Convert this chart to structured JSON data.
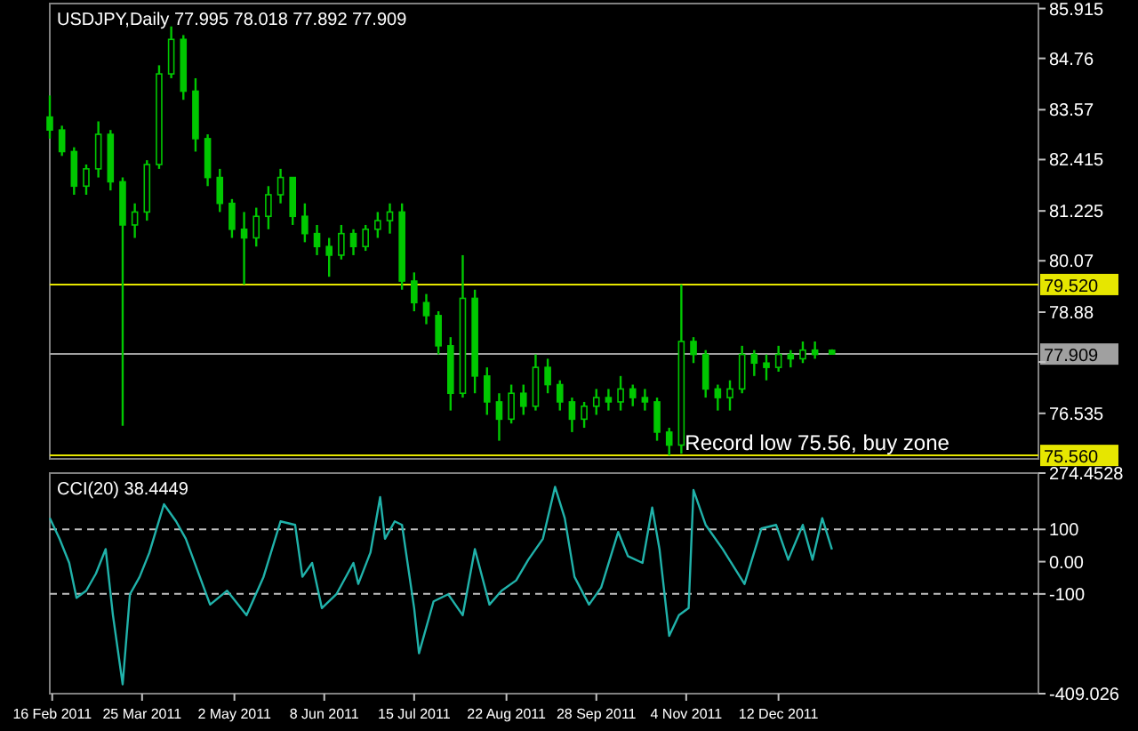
{
  "chart_data": [
    {
      "type": "candlestick",
      "title": "USDJPY,Daily  77.995 78.018 77.892 77.909",
      "color": "#00c800",
      "tick_labels": "y",
      "x": [
        "2011-02-15",
        "2011-02-20",
        "2011-02-25",
        "2011-03-02",
        "2011-03-07",
        "2011-03-12",
        "2011-03-17",
        "2011-03-22",
        "2011-03-27",
        "2011-04-01",
        "2011-04-06",
        "2011-04-11",
        "2011-04-16",
        "2011-04-21",
        "2011-04-26",
        "2011-05-01",
        "2011-05-06",
        "2011-05-11",
        "2011-05-16",
        "2011-05-21",
        "2011-05-26",
        "2011-05-31",
        "2011-06-05",
        "2011-06-10",
        "2011-06-15",
        "2011-06-20",
        "2011-06-25",
        "2011-06-30",
        "2011-07-05",
        "2011-07-10",
        "2011-07-15",
        "2011-07-20",
        "2011-07-25",
        "2011-07-30",
        "2011-08-04",
        "2011-08-09",
        "2011-08-14",
        "2011-08-19",
        "2011-08-24",
        "2011-08-29",
        "2011-09-03",
        "2011-09-08",
        "2011-09-13",
        "2011-09-18",
        "2011-09-23",
        "2011-09-28",
        "2011-10-03",
        "2011-10-08",
        "2011-10-13",
        "2011-10-18",
        "2011-10-23",
        "2011-10-28",
        "2011-11-02",
        "2011-11-07",
        "2011-11-12",
        "2011-11-17",
        "2011-11-22",
        "2011-11-27",
        "2011-12-02",
        "2011-12-07",
        "2011-12-12",
        "2011-12-17",
        "2011-12-22",
        "2011-12-27",
        "2012-01-03"
      ],
      "ohlc": [
        [
          83.4,
          83.9,
          82.9,
          83.1
        ],
        [
          83.1,
          83.2,
          82.5,
          82.6
        ],
        [
          82.6,
          82.7,
          81.6,
          81.8
        ],
        [
          81.8,
          82.3,
          81.6,
          82.2
        ],
        [
          82.2,
          83.3,
          82.0,
          83.0
        ],
        [
          83.0,
          83.1,
          81.7,
          81.9
        ],
        [
          81.9,
          82.0,
          76.25,
          80.9
        ],
        [
          80.9,
          81.4,
          80.6,
          81.2
        ],
        [
          81.2,
          82.4,
          81.0,
          82.3
        ],
        [
          82.3,
          84.6,
          82.2,
          84.4
        ],
        [
          84.4,
          85.5,
          84.3,
          85.2
        ],
        [
          85.2,
          85.3,
          83.8,
          84.0
        ],
        [
          84.0,
          84.3,
          82.6,
          82.9
        ],
        [
          82.9,
          83.0,
          81.8,
          82.0
        ],
        [
          82.0,
          82.2,
          81.2,
          81.4
        ],
        [
          81.4,
          81.5,
          80.6,
          80.8
        ],
        [
          80.8,
          81.2,
          79.52,
          80.6
        ],
        [
          80.6,
          81.3,
          80.4,
          81.1
        ],
        [
          81.1,
          81.8,
          80.8,
          81.6
        ],
        [
          81.6,
          82.2,
          81.4,
          82.0
        ],
        [
          82.0,
          82.0,
          80.9,
          81.1
        ],
        [
          81.1,
          81.4,
          80.5,
          80.7
        ],
        [
          80.7,
          80.9,
          80.2,
          80.4
        ],
        [
          80.4,
          80.6,
          79.7,
          80.2
        ],
        [
          80.2,
          80.9,
          80.1,
          80.7
        ],
        [
          80.7,
          80.8,
          80.2,
          80.4
        ],
        [
          80.4,
          80.9,
          80.3,
          80.8
        ],
        [
          80.8,
          81.2,
          80.6,
          81.0
        ],
        [
          81.0,
          81.4,
          80.7,
          81.2
        ],
        [
          81.2,
          81.4,
          79.4,
          79.6
        ],
        [
          79.6,
          79.8,
          78.9,
          79.1
        ],
        [
          79.1,
          79.3,
          78.6,
          78.8
        ],
        [
          78.8,
          78.9,
          77.9,
          78.1
        ],
        [
          78.1,
          78.3,
          76.6,
          77.0
        ],
        [
          77.0,
          80.2,
          76.9,
          79.2
        ],
        [
          79.2,
          79.4,
          77.0,
          77.4
        ],
        [
          77.4,
          77.6,
          76.5,
          76.8
        ],
        [
          76.8,
          77.0,
          75.9,
          76.4
        ],
        [
          76.4,
          77.2,
          76.3,
          77.0
        ],
        [
          77.0,
          77.2,
          76.5,
          76.7
        ],
        [
          76.7,
          77.9,
          76.6,
          77.6
        ],
        [
          77.6,
          77.8,
          77.0,
          77.2
        ],
        [
          77.2,
          77.3,
          76.6,
          76.8
        ],
        [
          76.8,
          76.9,
          76.1,
          76.4
        ],
        [
          76.4,
          76.8,
          76.2,
          76.7
        ],
        [
          76.7,
          77.1,
          76.5,
          76.9
        ],
        [
          76.9,
          77.1,
          76.6,
          76.8
        ],
        [
          76.8,
          77.4,
          76.6,
          77.1
        ],
        [
          77.1,
          77.2,
          76.7,
          76.9
        ],
        [
          76.9,
          77.1,
          76.6,
          76.8
        ],
        [
          76.8,
          76.9,
          75.9,
          76.1
        ],
        [
          76.1,
          76.2,
          75.56,
          75.8
        ],
        [
          75.8,
          79.52,
          75.6,
          78.2
        ],
        [
          78.2,
          78.3,
          77.7,
          77.9
        ],
        [
          77.9,
          78.0,
          76.9,
          77.1
        ],
        [
          77.1,
          77.2,
          76.6,
          76.9
        ],
        [
          76.9,
          77.3,
          76.6,
          77.1
        ],
        [
          77.1,
          78.1,
          77.0,
          77.9
        ],
        [
          77.9,
          78.0,
          77.4,
          77.7
        ],
        [
          77.7,
          77.9,
          77.3,
          77.6
        ],
        [
          77.6,
          78.1,
          77.5,
          77.9
        ],
        [
          77.9,
          78.0,
          77.6,
          77.8
        ],
        [
          77.8,
          78.2,
          77.7,
          78.0
        ],
        [
          78.0,
          78.2,
          77.8,
          77.9
        ],
        [
          77.995,
          78.018,
          77.892,
          77.909
        ]
      ],
      "xlim": [
        "2011-02-15",
        "2012-03-28"
      ],
      "ylim": [
        75.48,
        86.03
      ],
      "yticks": [
        85.915,
        84.76,
        83.57,
        82.415,
        81.225,
        80.07,
        78.88,
        {
          "value": 77.725,
          "label": null
        },
        76.535
      ],
      "ref_lines": [
        {
          "axis": "y",
          "value": 79.52,
          "label": "79.520",
          "color": "#e6e600"
        },
        {
          "axis": "y",
          "value": 75.56,
          "label": "75.560",
          "color": "#e6e600"
        },
        {
          "axis": "y",
          "value": 77.909,
          "label": "77.909",
          "color": "#a0a0a0"
        }
      ],
      "annotations": [
        {
          "text": "Record low 75.56, buy zone",
          "x": "2011-11-02",
          "y": 75.56
        }
      ]
    },
    {
      "type": "line",
      "title": "CCI(20) 38.4449",
      "x": [
        "2011-02-15",
        "2011-02-19",
        "2011-02-23",
        "2011-02-26",
        "2011-03-02",
        "2011-03-06",
        "2011-03-10",
        "2011-03-13",
        "2011-03-17",
        "2011-03-20",
        "2011-03-24",
        "2011-03-28",
        "2011-04-03",
        "2011-04-08",
        "2011-04-12",
        "2011-04-22",
        "2011-04-29",
        "2011-05-07",
        "2011-05-14",
        "2011-05-21",
        "2011-05-27",
        "2011-05-30",
        "2011-06-03",
        "2011-06-07",
        "2011-06-13",
        "2011-06-20",
        "2011-06-22",
        "2011-06-27",
        "2011-07-01",
        "2011-07-03",
        "2011-07-07",
        "2011-07-10",
        "2011-07-15",
        "2011-07-17",
        "2011-07-23",
        "2011-07-29",
        "2011-08-04",
        "2011-08-09",
        "2011-08-15",
        "2011-08-20",
        "2011-08-26",
        "2011-08-31",
        "2011-09-06",
        "2011-09-11",
        "2011-09-15",
        "2011-09-19",
        "2011-09-25",
        "2011-09-30",
        "2011-10-07",
        "2011-10-11",
        "2011-10-17",
        "2011-10-21",
        "2011-10-24",
        "2011-10-28",
        "2011-11-01",
        "2011-11-05",
        "2011-11-07",
        "2011-11-12",
        "2011-11-19",
        "2011-11-28",
        "2011-12-05",
        "2011-12-11",
        "2011-12-16",
        "2011-12-22",
        "2011-12-26",
        "2011-12-30",
        "2012-01-03"
      ],
      "series": [
        {
          "color": "#20b2aa",
          "values": [
            135,
            71,
            -4,
            -112,
            -90,
            -37,
            39,
            -166,
            -380,
            -101,
            -47,
            28,
            178,
            125,
            71,
            -133,
            -90,
            -166,
            -47,
            125,
            114,
            -47,
            -4,
            -144,
            -101,
            -4,
            -69,
            28,
            200,
            71,
            125,
            114,
            -144,
            -284,
            -123,
            -101,
            -166,
            39,
            -133,
            -90,
            -58,
            6,
            71,
            232,
            135,
            -47,
            -133,
            -80,
            92,
            17,
            -4,
            168,
            39,
            -230,
            -166,
            -144,
            222,
            114,
            39,
            -69,
            103,
            114,
            6,
            114,
            6,
            135,
            38
          ]
        }
      ],
      "xlim": [
        "2011-02-15",
        "2012-03-28"
      ],
      "ylim": [
        -409.026,
        274.4528
      ],
      "yticks": [
        274.4528,
        100,
        {
          "value": 0,
          "label": "0.00"
        },
        -100,
        -409.026
      ],
      "xticks": [
        {
          "value": "2011-02-16",
          "label": "16 Feb 2011"
        },
        {
          "value": "2011-03-25",
          "label": "25 Mar 2011"
        },
        {
          "value": "2011-05-02",
          "label": "2 May 2011"
        },
        {
          "value": "2011-06-08",
          "label": "8 Jun 2011"
        },
        {
          "value": "2011-07-15",
          "label": "15 Jul 2011"
        },
        {
          "value": "2011-08-22",
          "label": "22 Aug 2011"
        },
        {
          "value": "2011-09-28",
          "label": "28 Sep 2011"
        },
        {
          "value": "2011-11-04",
          "label": "4 Nov 2011"
        },
        {
          "value": "2011-12-12",
          "label": "12 Dec 2011"
        }
      ],
      "ref_lines": [
        {
          "axis": "y",
          "value": 100,
          "label": null,
          "color": "#c0c0c0",
          "line_style": "dashed"
        },
        {
          "axis": "y",
          "value": -100,
          "label": null,
          "color": "#c0c0c0",
          "line_style": "dashed"
        }
      ]
    }
  ]
}
